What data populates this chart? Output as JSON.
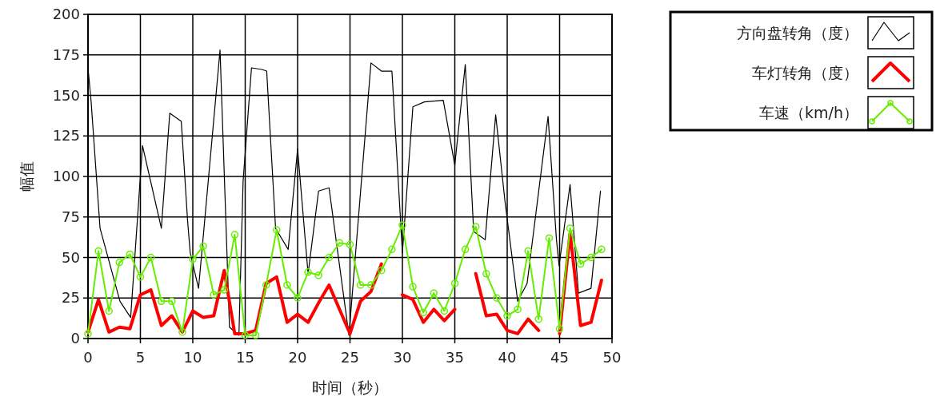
{
  "chart_data": {
    "type": "line",
    "xlabel": "时间（秒）",
    "ylabel": "幅值",
    "xlim": [
      0,
      50
    ],
    "ylim": [
      0,
      200
    ],
    "xticks": [
      0,
      5,
      10,
      15,
      20,
      25,
      30,
      35,
      40,
      45,
      50
    ],
    "yticks": [
      0,
      25,
      50,
      75,
      100,
      125,
      150,
      175,
      200
    ],
    "grid": true,
    "legend": "top right",
    "x": [
      0,
      1,
      2,
      3,
      4,
      5,
      6,
      7,
      8,
      9,
      10,
      11,
      12,
      13,
      14,
      15,
      16,
      17,
      18,
      19,
      20,
      21,
      22,
      23,
      24,
      25,
      26,
      27,
      28,
      29,
      30,
      31,
      32,
      33,
      34,
      35,
      36,
      37,
      38,
      39,
      40,
      41,
      42,
      43,
      44,
      45,
      46,
      47,
      48,
      49
    ],
    "series": [
      {
        "name": "方向盘转角（度）",
        "color": "#000000",
        "marker": "none",
        "x": [
          0,
          0.3,
          1.15,
          3.05,
          4.07,
          5.2,
          7.0,
          7.8,
          8.9,
          9.5,
          9.75,
          10.55,
          12.6,
          13.5,
          14.4,
          14.8,
          15.6,
          16.6,
          17.05,
          17.9,
          19.1,
          20.0,
          21.0,
          22.0,
          23.0,
          24.9,
          27.0,
          28.0,
          29.0,
          30.0,
          31.0,
          32.1,
          33.9,
          35.0,
          36.0,
          36.8,
          37.9,
          38.9,
          39.8,
          41.0,
          41.9,
          43.9,
          44.7,
          44.95,
          46.0,
          46.8,
          48.0,
          48.9
        ],
        "values": [
          167,
          146,
          68,
          23,
          13,
          119,
          68,
          139,
          134,
          73,
          53,
          31,
          178,
          7,
          2,
          97,
          167,
          166,
          165,
          68,
          55,
          117,
          40,
          91,
          93,
          2,
          170,
          165,
          165,
          53,
          143,
          146,
          147,
          107,
          169,
          66,
          61,
          138,
          84,
          23,
          34,
          137,
          61,
          45,
          95,
          28,
          31,
          91
        ]
      },
      {
        "name": "车灯转角（度）",
        "color": "#ff0000",
        "marker": "none",
        "values": [
          4,
          24,
          4,
          7,
          6,
          27,
          30,
          8,
          14,
          4,
          17,
          13,
          14,
          42,
          3,
          3,
          5,
          34,
          38,
          10,
          15,
          10,
          22,
          33,
          18,
          3,
          23,
          29,
          46,
          null,
          27,
          24,
          10,
          18,
          11,
          18,
          null,
          40,
          14,
          15,
          5,
          3,
          12,
          5,
          null,
          3,
          65,
          8,
          10,
          36
        ]
      },
      {
        "name": "车速（km/h）",
        "color": "#66ee00",
        "marker": "circle",
        "values": [
          3,
          54,
          17,
          47,
          52,
          38,
          50,
          23,
          23,
          4,
          49,
          57,
          27,
          30,
          64,
          2,
          2,
          33,
          67,
          33,
          25,
          41,
          39,
          50,
          59,
          58,
          33,
          33,
          42,
          55,
          70,
          32,
          16,
          28,
          17,
          34,
          55,
          69,
          40,
          25,
          14,
          18,
          54,
          12,
          62,
          6,
          68,
          46,
          50,
          55
        ]
      }
    ]
  }
}
